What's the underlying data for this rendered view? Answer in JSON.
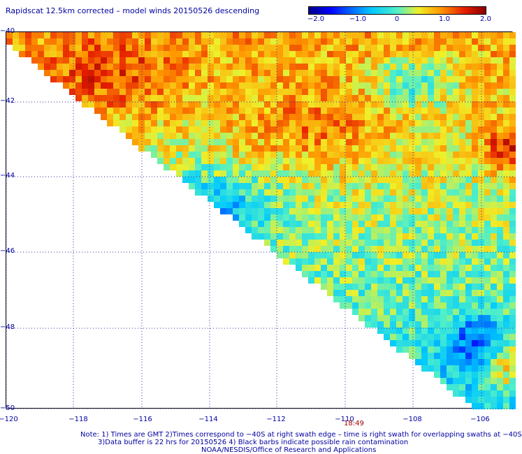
{
  "title": "Rapidscat 12.5km corrected – model winds 20150526 descending",
  "colorbar": {
    "ticks": [
      "−2.0",
      "−1.0",
      "0",
      "1.0",
      "2.0"
    ],
    "vmin": -2.0,
    "vmax": 2.0
  },
  "map": {
    "lat_labels": [
      "−40",
      "−42",
      "−44",
      "−46",
      "−48",
      "−50"
    ],
    "lon_labels": [
      "−120",
      "−118",
      "−116",
      "−114",
      "−112",
      "−110",
      "−108",
      "−106"
    ],
    "lat_range": [
      -50,
      -40
    ],
    "lon_range": [
      -120,
      -105.2
    ],
    "time_label": "18:49"
  },
  "notes": {
    "line1": "Note: 1) Times are GMT 2)Times correspond to −40S at right swath edge – time is right swath for overlapping swaths at −40S",
    "line2": "3)Data buffer is 22 hrs for 20150526 4) Black barbs indicate possible rain contamination",
    "line3": "NOAA/NESDIS/Office of Research and Applications"
  }
}
